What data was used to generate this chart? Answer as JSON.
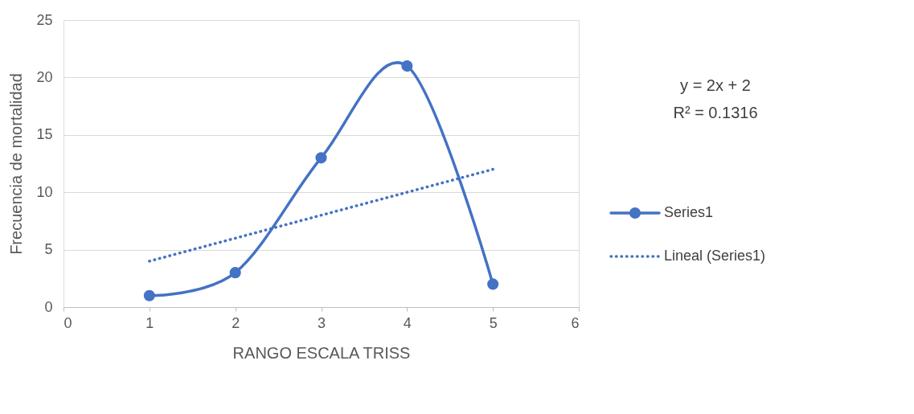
{
  "chart_data": {
    "type": "line",
    "xlabel": "RANGO ESCALA TRISS",
    "ylabel": "Frecuencia de mortalidad",
    "x": [
      1,
      2,
      3,
      4,
      5
    ],
    "series": [
      {
        "name": "Series1",
        "color": "#4472c4",
        "values": [
          1,
          3,
          13,
          21,
          2
        ],
        "marker": "circle",
        "line_style": "solid"
      },
      {
        "name": "Lineal (Series1)",
        "color": "#4472c4",
        "x": [
          1,
          5
        ],
        "values": [
          4,
          12
        ],
        "marker": "none",
        "line_style": "dotted"
      }
    ],
    "xlim": [
      0,
      6
    ],
    "xticks": [
      0,
      1,
      2,
      3,
      4,
      5,
      6
    ],
    "ylim": [
      0,
      25
    ],
    "yticks": [
      0,
      5,
      10,
      15,
      20,
      25
    ],
    "grid": "y",
    "legend": "right",
    "annotations": [
      "y = 2x + 2",
      "R² = 0.1316"
    ]
  }
}
